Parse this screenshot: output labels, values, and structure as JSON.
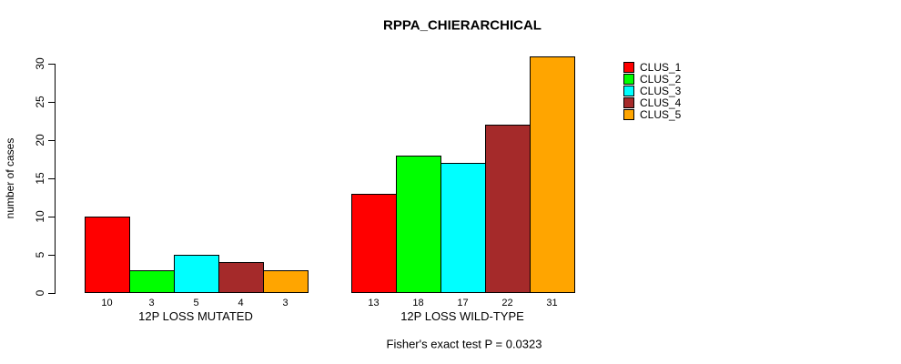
{
  "title": "RPPA_CHIERARCHICAL",
  "chart_data": {
    "type": "bar",
    "title": "RPPA_CHIERARCHICAL",
    "xlabel": "",
    "ylabel": "number of cases",
    "ylim": [
      0,
      30
    ],
    "yticks": [
      0,
      5,
      10,
      15,
      20,
      25,
      30
    ],
    "grid": false,
    "legend_position": "right",
    "series_names": [
      "CLUS_1",
      "CLUS_2",
      "CLUS_3",
      "CLUS_4",
      "CLUS_5"
    ],
    "series_colors": [
      "#FF0000",
      "#00FF00",
      "#00FFFF",
      "#A52A2A",
      "#FFA500"
    ],
    "groups": [
      {
        "label": "12P LOSS MUTATED",
        "values": [
          10,
          3,
          5,
          4,
          3
        ]
      },
      {
        "label": "12P LOSS WILD-TYPE",
        "values": [
          13,
          18,
          17,
          22,
          31
        ]
      }
    ],
    "bar_value_labels": [
      [
        "10",
        "3",
        "5",
        "4",
        "3"
      ],
      [
        "13",
        "18",
        "17",
        "22",
        "31"
      ]
    ],
    "annotation": "Fisher's exact test P = 0.0323"
  },
  "legend": {
    "items": [
      {
        "label": "CLUS_1",
        "color": "#FF0000"
      },
      {
        "label": "CLUS_2",
        "color": "#00FF00"
      },
      {
        "label": "CLUS_3",
        "color": "#00FFFF"
      },
      {
        "label": "CLUS_4",
        "color": "#A52A2A"
      },
      {
        "label": "CLUS_5",
        "color": "#FFA500"
      }
    ]
  }
}
